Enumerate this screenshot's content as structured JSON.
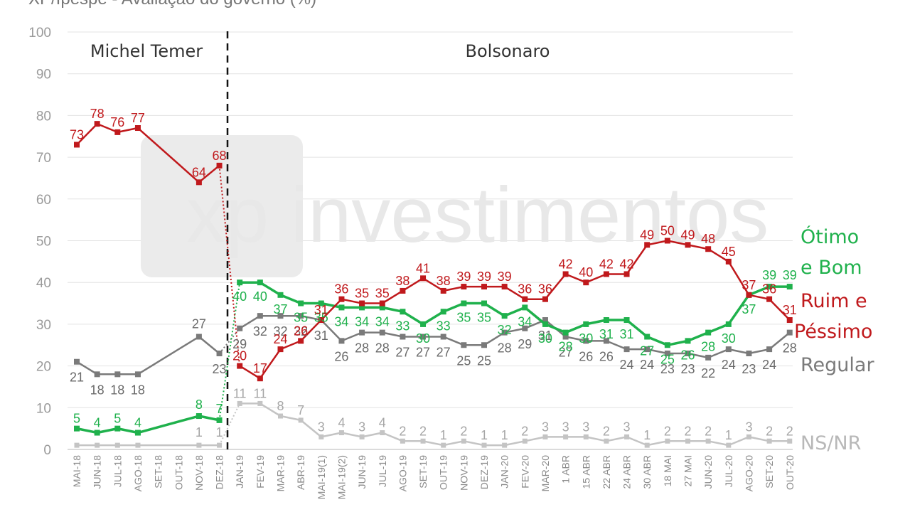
{
  "chart_data": {
    "type": "line",
    "title": "XP/Ipespe - Avaliação do governo (%)",
    "ylim": [
      0,
      100
    ],
    "yticks": [
      0,
      10,
      20,
      30,
      40,
      50,
      60,
      70,
      80,
      90,
      100
    ],
    "grid": true,
    "x": [
      "MAI-18",
      "JUN-18",
      "JUL-18",
      "AGO-18",
      "SET-18",
      "OUT-18",
      "NOV-18",
      "DEZ-18",
      "JAN-19",
      "FEV-19",
      "MAR-19",
      "ABR-19",
      "MAI-19(1)",
      "MAI-19(2)",
      "JUN-19",
      "JUL-19",
      "AGO-19",
      "SET-19",
      "OUT-19",
      "NOV-19",
      "DEZ-19",
      "JAN-20",
      "FEV-20",
      "MAR-20",
      "1 ABR",
      "15 ABR",
      "22 ABR",
      "24 ABR",
      "30 ABR",
      "18 MAI",
      "27 MAI",
      "JUN-20",
      "JUL-20",
      "AGO-20",
      "SET-20",
      "OUT-20"
    ],
    "periods": [
      {
        "label": "Michel Temer"
      },
      {
        "label": "Bolsonaro"
      }
    ],
    "series": [
      {
        "name": "Ótimo e Bom",
        "legend": [
          "Ótimo",
          "e Bom"
        ],
        "color": "#1fb14c",
        "values": [
          5,
          4,
          5,
          4,
          null,
          null,
          8,
          7,
          40,
          40,
          37,
          35,
          35,
          34,
          34,
          34,
          33,
          30,
          33,
          35,
          35,
          32,
          34,
          30,
          28,
          30,
          31,
          31,
          27,
          25,
          26,
          28,
          30,
          37,
          39,
          39
        ],
        "labels": [
          "5",
          "4",
          "5",
          "4",
          "",
          "",
          "8",
          "7",
          "40",
          "40",
          "37",
          "35",
          "35",
          "34",
          "34",
          "34",
          "33",
          "30",
          "33",
          "35",
          "35",
          "32",
          "34",
          "30",
          "28",
          "30",
          "31",
          "31",
          "27",
          "25",
          "26",
          "28",
          "30",
          "37",
          "39",
          "39"
        ]
      },
      {
        "name": "Ruim e Péssimo",
        "legend": [
          "Ruim e",
          "Péssimo"
        ],
        "color": "#c0191c",
        "values": [
          73,
          78,
          76,
          77,
          null,
          null,
          64,
          68,
          20,
          17,
          24,
          26,
          31,
          36,
          35,
          35,
          38,
          41,
          38,
          39,
          39,
          39,
          36,
          36,
          42,
          40,
          42,
          42,
          49,
          50,
          49,
          48,
          45,
          37,
          36,
          31
        ],
        "labels": [
          "73",
          "78",
          "76",
          "77",
          "",
          "",
          "64",
          "68",
          "20",
          "17",
          "24",
          "26",
          "31",
          "36",
          "35",
          "35",
          "38",
          "41",
          "38",
          "39",
          "39",
          "39",
          "36",
          "36",
          "42",
          "40",
          "42",
          "42",
          "49",
          "50",
          "49",
          "48",
          "45",
          "37",
          "36",
          "31"
        ]
      },
      {
        "name": "Regular",
        "legend": [
          "Regular"
        ],
        "color": "#7a7a7a",
        "values": [
          21,
          18,
          18,
          18,
          null,
          null,
          27,
          23,
          29,
          32,
          32,
          32,
          31,
          26,
          28,
          28,
          27,
          27,
          27,
          25,
          25,
          28,
          29,
          31,
          27,
          26,
          26,
          24,
          24,
          23,
          23,
          22,
          24,
          23,
          24,
          28
        ],
        "labels": [
          "21",
          "18",
          "18",
          "18",
          "",
          "",
          "27",
          "23",
          "29",
          "32",
          "32",
          "32",
          "31",
          "26",
          "28",
          "28",
          "27",
          "27",
          "27",
          "25",
          "25",
          "28",
          "29",
          "31",
          "27",
          "26",
          "26",
          "24",
          "24",
          "23",
          "23",
          "22",
          "24",
          "23",
          "24",
          "28"
        ]
      },
      {
        "name": "NS/NR",
        "legend": [
          "NS/NR"
        ],
        "color": "#c4c4c4",
        "values": [
          1,
          1,
          1,
          1,
          null,
          null,
          1,
          1,
          11,
          11,
          8,
          7,
          3,
          4,
          3,
          4,
          2,
          2,
          1,
          2,
          1,
          1,
          2,
          3,
          3,
          3,
          2,
          3,
          1,
          2,
          2,
          2,
          1,
          3,
          2,
          2
        ],
        "labels": [
          "",
          "",
          "",
          "",
          "",
          "",
          "1",
          "1",
          "11",
          "11",
          "8",
          "7",
          "3",
          "4",
          "3",
          "4",
          "2",
          "2",
          "1",
          "2",
          "1",
          "1",
          "2",
          "3",
          "3",
          "3",
          "2",
          "3",
          "1",
          "2",
          "2",
          "2",
          "1",
          "3",
          "2",
          "2"
        ]
      }
    ]
  },
  "watermark": "xp investimentos"
}
